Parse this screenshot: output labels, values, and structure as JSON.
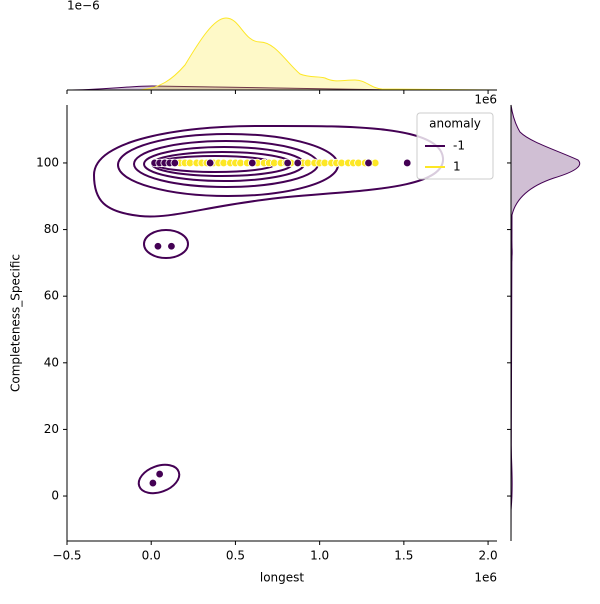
{
  "chart_data": {
    "type": "scatter",
    "x_label": "longest",
    "y_label": "Completeness_Specific",
    "x_offset_label": "1e6",
    "marginal_x_offset_label": "1e6",
    "marginal_top_offset_label": "1e−6",
    "legend_title": "anomaly",
    "legend_position": "upper right",
    "xlim": [
      -500000,
      2053000
    ],
    "xticks": [
      {
        "value": -500000,
        "label": "−0.5"
      },
      {
        "value": 0,
        "label": "0.0"
      },
      {
        "value": 500000,
        "label": "0.5"
      },
      {
        "value": 1000000,
        "label": "1.0"
      },
      {
        "value": 1500000,
        "label": "1.5"
      },
      {
        "value": 2000000,
        "label": "2.0"
      }
    ],
    "ylim": [
      -13.5,
      117.4
    ],
    "yticks": [
      0,
      20,
      40,
      60,
      80,
      100
    ],
    "series": [
      {
        "name": "1",
        "color": "#fde725",
        "x": [
          30000,
          60000,
          90000,
          130000,
          170000,
          200000,
          230000,
          270000,
          300000,
          330000,
          370000,
          400000,
          430000,
          470000,
          500000,
          530000,
          570000,
          600000,
          630000,
          670000,
          700000,
          730000,
          770000,
          800000,
          830000,
          870000,
          900000,
          930000,
          970000,
          1000000,
          1030000,
          1070000,
          1100000,
          1130000,
          1170000,
          1200000,
          1230000,
          1270000,
          1300000,
          1330000
        ],
        "values": [
          100,
          100,
          100,
          100,
          100,
          100,
          100,
          100,
          100,
          100,
          100,
          100,
          100,
          100,
          100,
          100,
          100,
          100,
          100,
          100,
          100,
          100,
          100,
          100,
          100,
          100,
          100,
          100,
          100,
          100,
          100,
          100,
          100,
          100,
          100,
          100,
          100,
          100,
          100,
          100
        ]
      },
      {
        "name": "-1",
        "color": "#440154",
        "x": [
          20000,
          50000,
          80000,
          110000,
          140000,
          350000,
          600000,
          810000,
          870000,
          1290000,
          1520000,
          40000,
          120000,
          50000,
          10000
        ],
        "values": [
          100,
          100,
          100,
          100,
          100,
          100,
          100,
          100,
          100,
          100,
          100,
          75,
          75,
          6.6,
          3.9
        ]
      }
    ]
  }
}
